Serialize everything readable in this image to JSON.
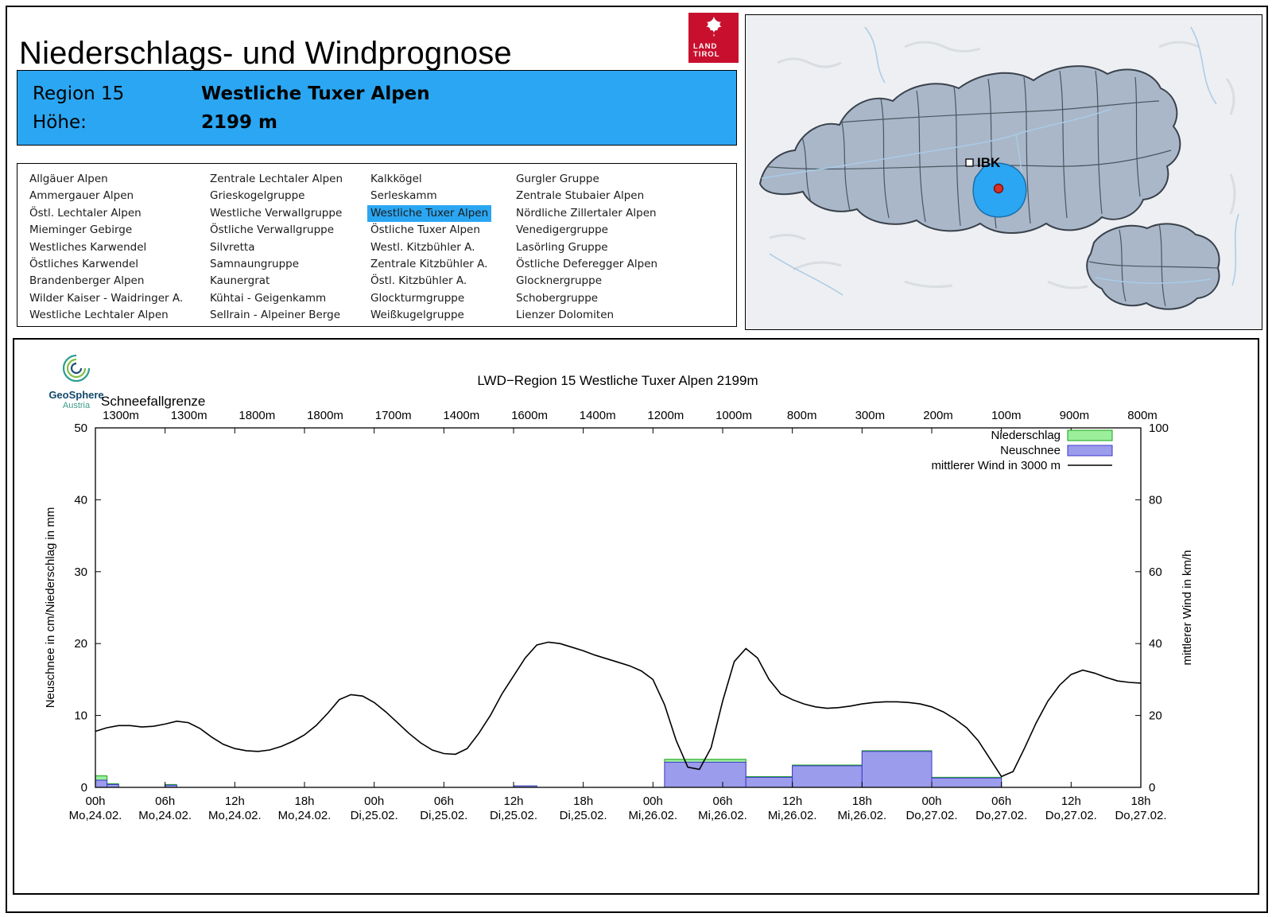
{
  "header": {
    "title": "Niederschlags- und Windprognose",
    "logo": {
      "line1": "LAND",
      "line2": "TIROL",
      "background": "#C8102E"
    }
  },
  "banner": {
    "region_label": "Region 15",
    "region_name": "Westliche Tuxer Alpen",
    "altitude_label": "Höhe:",
    "altitude_value": "2199 m",
    "background": "#2BA6F2"
  },
  "region_list": {
    "selected": "Westliche Tuxer Alpen",
    "highlight_color": "#2BA6F2",
    "columns": [
      [
        "Allgäuer Alpen",
        "Ammergauer Alpen",
        "Östl. Lechtaler Alpen",
        "Mieminger Gebirge",
        "Westliches Karwendel",
        "Östliches Karwendel",
        "Brandenberger Alpen",
        "Wilder Kaiser - Waidringer A.",
        "Westliche Lechtaler Alpen"
      ],
      [
        "Zentrale Lechtaler Alpen",
        "Grieskogelgruppe",
        "Westliche Verwallgruppe",
        "Östliche Verwallgruppe",
        "Silvretta",
        "Samnaungruppe",
        "Kaunergrat",
        "Kühtai - Geigenkamm",
        "Sellrain - Alpeiner Berge"
      ],
      [
        "Kalkkögel",
        "Serleskamm",
        "Westliche Tuxer Alpen",
        "Östliche Tuxer Alpen",
        "Westl. Kitzbühler A.",
        "Zentrale Kitzbühler A.",
        "Östl. Kitzbühler A.",
        "Glockturmgruppe",
        "Weißkugelgruppe"
      ],
      [
        "Gurgler Gruppe",
        "Zentrale Stubaier Alpen",
        "Nördliche Zillertaler Alpen",
        "Venedigergruppe",
        "Lasörling Gruppe",
        "Östliche Deferegger Alpen",
        "Glocknergruppe",
        "Schobergruppe",
        "Lienzer Dolomiten"
      ]
    ]
  },
  "map": {
    "ibk_label": "IBK",
    "highlight_color": "#2BA6F2",
    "marker_color": "#D93025"
  },
  "geosphere": {
    "name": "GeoSphere",
    "sub": "Austria"
  },
  "chart_data": {
    "type": "mixed",
    "title": "LWD−Region 15 Westliche Tuxer Alpen 2199m",
    "snowline": {
      "label": "Schneefallgrenze",
      "values": [
        "1300m",
        "1300m",
        "1800m",
        "1800m",
        "1700m",
        "1400m",
        "1600m",
        "1400m",
        "1200m",
        "1000m",
        "800m",
        "300m",
        "200m",
        "100m",
        "900m",
        "800m"
      ]
    },
    "hours_range": [
      0,
      90
    ],
    "x_ticks": [
      {
        "hour": "00h",
        "date": "Mo,24.02."
      },
      {
        "hour": "06h",
        "date": "Mo,24.02."
      },
      {
        "hour": "12h",
        "date": "Mo,24.02."
      },
      {
        "hour": "18h",
        "date": "Mo,24.02."
      },
      {
        "hour": "00h",
        "date": "Di,25.02."
      },
      {
        "hour": "06h",
        "date": "Di,25.02."
      },
      {
        "hour": "12h",
        "date": "Di,25.02."
      },
      {
        "hour": "18h",
        "date": "Di,25.02."
      },
      {
        "hour": "00h",
        "date": "Mi,26.02."
      },
      {
        "hour": "06h",
        "date": "Mi,26.02."
      },
      {
        "hour": "12h",
        "date": "Mi,26.02."
      },
      {
        "hour": "18h",
        "date": "Mi,26.02."
      },
      {
        "hour": "00h",
        "date": "Do,27.02."
      },
      {
        "hour": "06h",
        "date": "Do,27.02."
      },
      {
        "hour": "12h",
        "date": "Do,27.02."
      },
      {
        "hour": "18h",
        "date": "Do,27.02."
      }
    ],
    "y_left": {
      "label": "Neuschnee in cm/Niederschlag in mm",
      "ticks": [
        0,
        10,
        20,
        30,
        40,
        50
      ],
      "range": [
        0,
        50
      ]
    },
    "y_right": {
      "label": "mittlerer Wind in km/h",
      "ticks": [
        0,
        20,
        40,
        60,
        80,
        100
      ],
      "range": [
        0,
        100
      ]
    },
    "legend": [
      {
        "label": "Niederschlag",
        "swatch": "box",
        "fill": "#9BEF9B",
        "stroke": "#17A317"
      },
      {
        "label": "Neuschnee",
        "swatch": "box",
        "fill": "#9C9CEC",
        "stroke": "#3A3AC8"
      },
      {
        "label": "mittlerer Wind in 3000 m",
        "swatch": "line",
        "stroke": "#000000"
      }
    ],
    "bars": [
      {
        "from_h": 0,
        "to_h": 1,
        "niederschlag_mm": 1.6,
        "neuschnee_cm": 1.0
      },
      {
        "from_h": 1,
        "to_h": 2,
        "niederschlag_mm": 0.5,
        "neuschnee_cm": 0.4
      },
      {
        "from_h": 6,
        "to_h": 7,
        "niederschlag_mm": 0.4,
        "neuschnee_cm": 0.3
      },
      {
        "from_h": 36,
        "to_h": 38,
        "niederschlag_mm": 0.2,
        "neuschnee_cm": 0.2
      },
      {
        "from_h": 49,
        "to_h": 56,
        "niederschlag_mm": 3.9,
        "neuschnee_cm": 3.5
      },
      {
        "from_h": 56,
        "to_h": 60,
        "niederschlag_mm": 1.5,
        "neuschnee_cm": 1.4
      },
      {
        "from_h": 60,
        "to_h": 66,
        "niederschlag_mm": 3.1,
        "neuschnee_cm": 3.0
      },
      {
        "from_h": 66,
        "to_h": 72,
        "niederschlag_mm": 5.1,
        "neuschnee_cm": 5.0
      },
      {
        "from_h": 72,
        "to_h": 78,
        "niederschlag_mm": 1.4,
        "neuschnee_cm": 1.3
      }
    ],
    "wind_kmh": {
      "start_hour": 0,
      "step_hours": 1,
      "values": [
        15.6,
        16.6,
        17.2,
        17.2,
        16.8,
        17.0,
        17.6,
        18.4,
        18.0,
        16.4,
        14.0,
        12.0,
        10.8,
        10.2,
        10.0,
        10.4,
        11.4,
        12.8,
        14.6,
        17.2,
        20.6,
        24.4,
        25.8,
        25.4,
        23.6,
        21.0,
        18.0,
        15.0,
        12.4,
        10.4,
        9.4,
        9.2,
        10.8,
        15.0,
        20.0,
        26.0,
        31.0,
        36.0,
        39.6,
        40.4,
        40.0,
        39.0,
        38.0,
        36.8,
        35.8,
        34.8,
        33.8,
        32.4,
        30.0,
        23.0,
        13.0,
        5.6,
        5.0,
        11.0,
        24.0,
        35.0,
        38.6,
        36.0,
        30.0,
        26.0,
        24.4,
        23.2,
        22.4,
        22.0,
        22.2,
        22.6,
        23.2,
        23.6,
        23.8,
        23.8,
        23.6,
        23.2,
        22.4,
        21.0,
        19.0,
        16.6,
        13.0,
        8.0,
        3.0,
        4.4,
        11.0,
        18.0,
        24.0,
        28.4,
        31.4,
        32.6,
        31.8,
        30.6,
        29.6,
        29.2,
        29.0
      ]
    }
  }
}
